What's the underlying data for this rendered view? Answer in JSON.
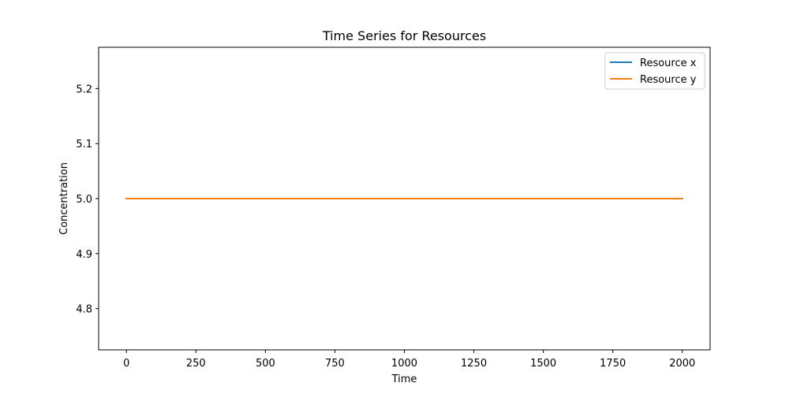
{
  "chart_data": {
    "type": "line",
    "title": "Time Series for Resources",
    "xlabel": "Time",
    "ylabel": "Concentration",
    "xlim": [
      -100,
      2100
    ],
    "ylim": [
      4.725,
      5.275
    ],
    "xticks": [
      0,
      250,
      500,
      750,
      1000,
      1250,
      1500,
      1750,
      2000
    ],
    "xtick_labels": [
      "0",
      "250",
      "500",
      "750",
      "1000",
      "1250",
      "1500",
      "1750",
      "2000"
    ],
    "yticks": [
      4.8,
      4.9,
      5.0,
      5.1,
      5.2
    ],
    "ytick_labels": [
      "4.8",
      "4.9",
      "5.0",
      "5.1",
      "5.2"
    ],
    "grid": false,
    "legend_position": "top-right",
    "series": [
      {
        "name": "Resource x",
        "color": "#1f77b4",
        "x": [
          0,
          2000
        ],
        "y": [
          5.0,
          5.0
        ]
      },
      {
        "name": "Resource y",
        "color": "#ff7f0e",
        "x": [
          0,
          2000
        ],
        "y": [
          5.0,
          5.0
        ]
      }
    ]
  }
}
